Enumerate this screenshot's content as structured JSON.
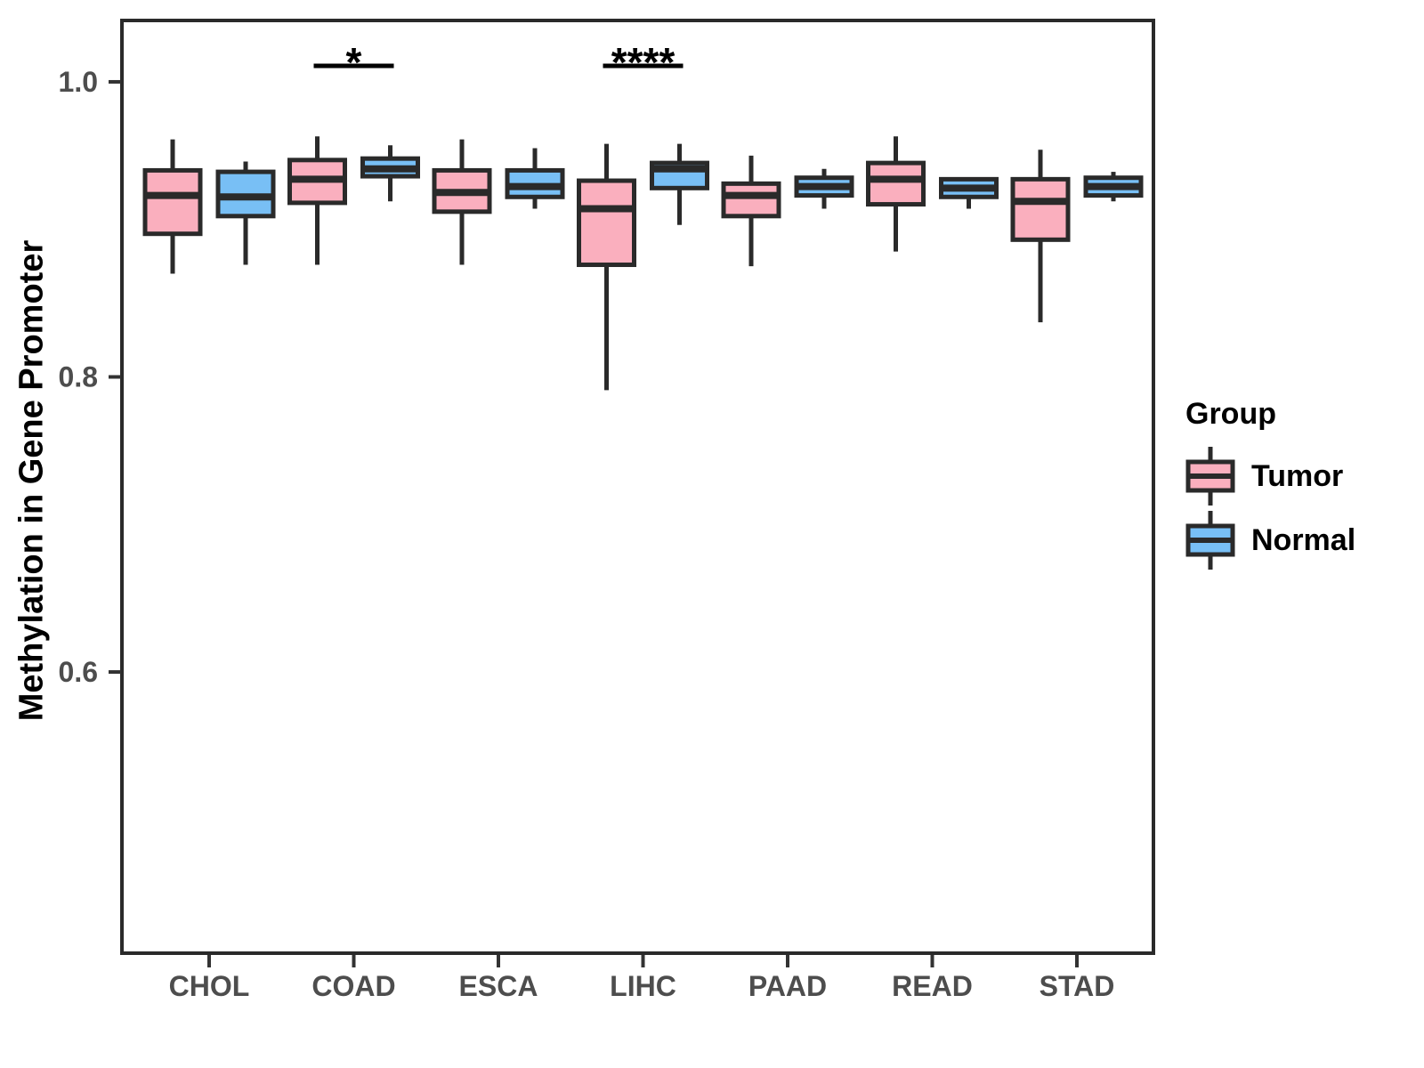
{
  "figure": {
    "background": "#FFFFFF"
  },
  "style": {
    "box_border": "#2A2A2A",
    "axis_text_color": "#4D4D4D",
    "text_color": "#000000"
  },
  "chart_data": {
    "type": "boxplot",
    "title": "",
    "xlabel": "",
    "ylabel": "Methylation in Gene Promoter",
    "grid": false,
    "ylim": [
      0.41,
      1.04
    ],
    "categories": [
      "CHOL",
      "COAD",
      "ESCA",
      "LIHC",
      "PAAD",
      "READ",
      "STAD"
    ],
    "y_ticks": [
      {
        "value": 1.0,
        "label": "1.0"
      },
      {
        "value": 0.8,
        "label": "0.8"
      },
      {
        "value": 0.6,
        "label": "0.6"
      }
    ],
    "legend": {
      "title": "Group",
      "position": "right",
      "entries": [
        {
          "label": "Tumor",
          "color": "#FAAFBE"
        },
        {
          "label": "Normal",
          "color": "#78BFF5"
        }
      ]
    },
    "series": [
      {
        "name": "Tumor",
        "color": "#FAAFBE",
        "boxes": [
          {
            "min": 0.87,
            "q1": 0.897,
            "median": 0.923,
            "q3": 0.94,
            "max": 0.961
          },
          {
            "min": 0.876,
            "q1": 0.918,
            "median": 0.934,
            "q3": 0.947,
            "max": 0.963
          },
          {
            "min": 0.876,
            "q1": 0.912,
            "median": 0.925,
            "q3": 0.94,
            "max": 0.961
          },
          {
            "min": 0.791,
            "q1": 0.876,
            "median": 0.914,
            "q3": 0.933,
            "max": 0.958
          },
          {
            "min": 0.875,
            "q1": 0.909,
            "median": 0.923,
            "q3": 0.931,
            "max": 0.95
          },
          {
            "min": 0.885,
            "q1": 0.917,
            "median": 0.934,
            "q3": 0.945,
            "max": 0.963
          },
          {
            "min": 0.837,
            "q1": 0.893,
            "median": 0.919,
            "q3": 0.934,
            "max": 0.954
          }
        ]
      },
      {
        "name": "Normal",
        "color": "#78BFF5",
        "boxes": [
          {
            "min": 0.876,
            "q1": 0.909,
            "median": 0.922,
            "q3": 0.939,
            "max": 0.946
          },
          {
            "min": 0.919,
            "q1": 0.936,
            "median": 0.941,
            "q3": 0.948,
            "max": 0.957
          },
          {
            "min": 0.914,
            "q1": 0.922,
            "median": 0.929,
            "q3": 0.94,
            "max": 0.955
          },
          {
            "min": 0.903,
            "q1": 0.928,
            "median": 0.941,
            "q3": 0.945,
            "max": 0.958
          },
          {
            "min": 0.914,
            "q1": 0.923,
            "median": 0.929,
            "q3": 0.935,
            "max": 0.941
          },
          {
            "min": 0.914,
            "q1": 0.922,
            "median": 0.928,
            "q3": 0.934,
            "max": 0.934
          },
          {
            "min": 0.919,
            "q1": 0.923,
            "median": 0.929,
            "q3": 0.935,
            "max": 0.939
          }
        ]
      }
    ],
    "annotations": [
      {
        "category": "COAD",
        "label": "*"
      },
      {
        "category": "LIHC",
        "label": "****"
      }
    ]
  }
}
